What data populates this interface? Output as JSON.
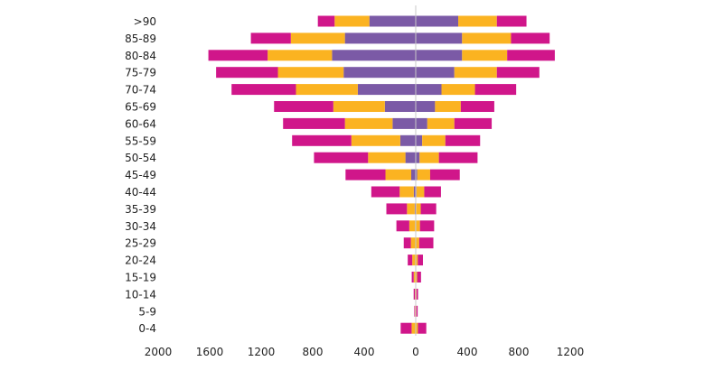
{
  "chart_data": {
    "type": "bar",
    "orientation": "horizontal",
    "stacked": true,
    "diverging": true,
    "categories": [
      ">90",
      "85-89",
      "80-84",
      "75-79",
      "70-74",
      "65-69",
      "60-64",
      "55-59",
      "50-54",
      "45-49",
      "40-44",
      "35-39",
      "30-34",
      "25-29",
      "20-24",
      "15-19",
      "10-14",
      "5-9",
      "0-4"
    ],
    "series": [
      {
        "color": "#7b5aa6",
        "left": [
          -360,
          -550,
          -650,
          -560,
          -450,
          -240,
          -180,
          -120,
          -80,
          -35,
          -15,
          -8,
          -5,
          -3,
          -2,
          -1,
          -1,
          -1,
          -2
        ],
        "right": [
          330,
          360,
          360,
          300,
          200,
          150,
          90,
          50,
          30,
          12,
          6,
          4,
          3,
          2,
          1,
          1,
          1,
          1,
          2
        ]
      },
      {
        "color": "#fbb321",
        "left": [
          -270,
          -420,
          -500,
          -510,
          -480,
          -400,
          -370,
          -380,
          -290,
          -200,
          -110,
          -60,
          -45,
          -35,
          -25,
          -15,
          -5,
          -5,
          -30
        ],
        "right": [
          300,
          380,
          350,
          330,
          260,
          200,
          210,
          180,
          150,
          100,
          60,
          35,
          30,
          25,
          15,
          10,
          5,
          4,
          15
        ]
      },
      {
        "color": "#d0168a",
        "left": [
          -130,
          -310,
          -460,
          -480,
          -500,
          -460,
          -480,
          -460,
          -420,
          -310,
          -220,
          -160,
          -100,
          -55,
          -35,
          -15,
          -10,
          -5,
          -85
        ],
        "right": [
          230,
          300,
          370,
          330,
          320,
          260,
          290,
          270,
          300,
          230,
          130,
          120,
          110,
          110,
          40,
          30,
          12,
          10,
          65
        ]
      }
    ],
    "xlim": [
      -2000,
      1300
    ],
    "xticks": [
      -2000,
      -1600,
      -1200,
      -800,
      -400,
      0,
      400,
      800,
      1200
    ],
    "xtick_labels": [
      "2000",
      "1600",
      "1200",
      "800",
      "400",
      "0",
      "400",
      "800",
      "1200"
    ],
    "grid": false,
    "title": "",
    "xlabel": "",
    "ylabel": ""
  }
}
